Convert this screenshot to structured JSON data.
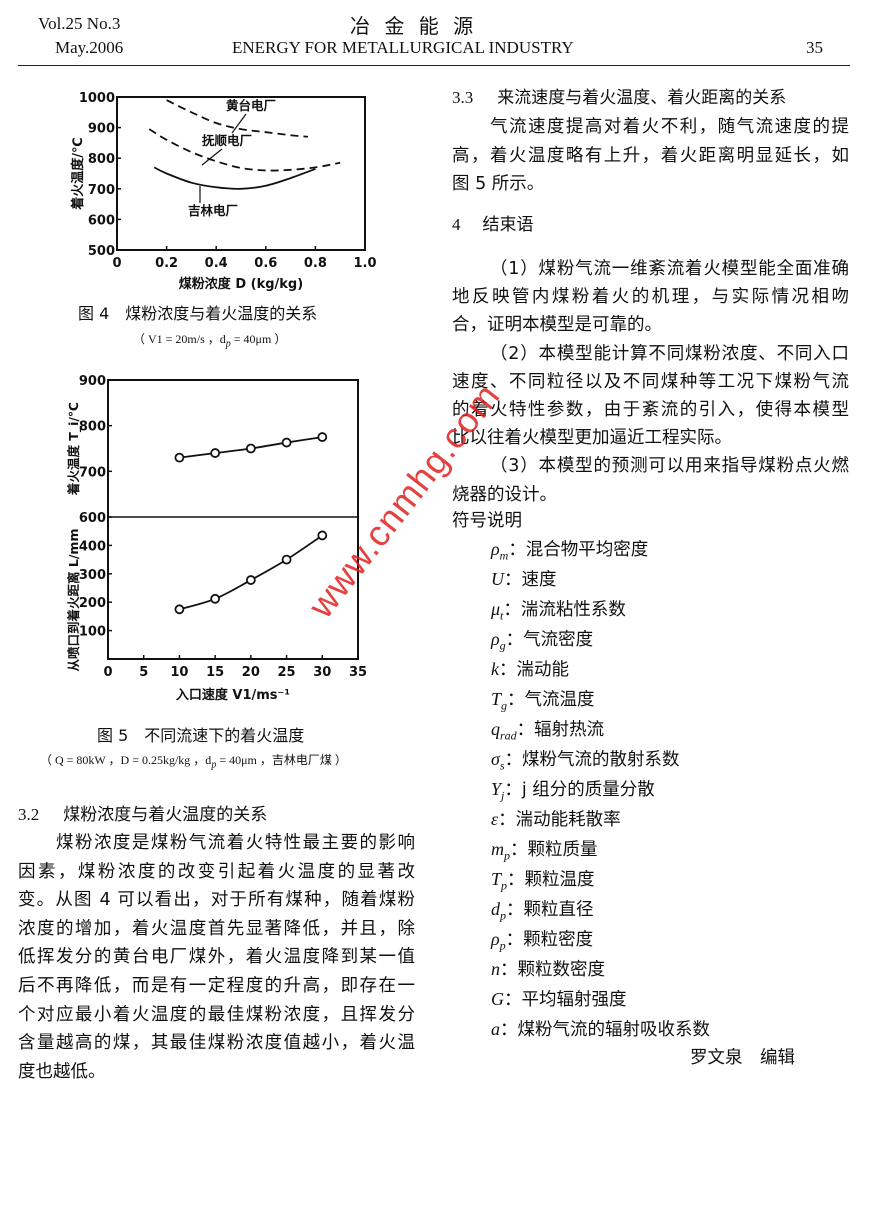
{
  "header": {
    "volume": "Vol.25   No.3",
    "date": "May.2006",
    "journal_cn": "冶 金 能 源",
    "journal_en": "ENERGY FOR METALLURGICAL INDUSTRY",
    "page": "35"
  },
  "fig4": {
    "caption": "图 4　煤粉浓度与着火温度的关系",
    "subcaption": "（ V1 = 20m/s ，d",
    "subcaption_sub": "p",
    "subcaption_end": " = 40μm ）"
  },
  "fig5": {
    "caption": "图 5　不同流速下的着火温度",
    "subcaption": "（ Q = 80kW ，D = 0.25kg/kg ，d",
    "subcaption_sub": "p",
    "subcaption_end": " = 40μm ，吉林电厂煤 ）"
  },
  "chart_data": [
    {
      "type": "line",
      "figure": "图 4",
      "xlabel": "煤粉浓度 D (kg/kg)",
      "ylabel": "着火温度/℃",
      "xlim": [
        0,
        1.0
      ],
      "ylim": [
        500,
        1000
      ],
      "xticks": [
        "0",
        "0.2",
        "0.4",
        "0.6",
        "0.8",
        "1.0"
      ],
      "yticks": [
        "500",
        "600",
        "700",
        "800",
        "900",
        "1000"
      ],
      "grid": false,
      "series": [
        {
          "name": "黄台电厂",
          "style": "dashed",
          "x": [
            0.2,
            0.3,
            0.4,
            0.5,
            0.6,
            0.7,
            0.77
          ],
          "y": [
            990,
            950,
            915,
            895,
            885,
            875,
            870
          ]
        },
        {
          "name": "抚顺电厂",
          "style": "dashed",
          "x": [
            0.13,
            0.2,
            0.3,
            0.4,
            0.5,
            0.6,
            0.7,
            0.8,
            0.9
          ],
          "y": [
            895,
            860,
            820,
            790,
            768,
            760,
            762,
            770,
            785
          ]
        },
        {
          "name": "吉林电厂",
          "style": "solid",
          "x": [
            0.15,
            0.2,
            0.3,
            0.4,
            0.5,
            0.6,
            0.7,
            0.8
          ],
          "y": [
            770,
            750,
            720,
            705,
            700,
            710,
            735,
            765
          ]
        }
      ]
    },
    {
      "type": "line",
      "figure": "图 5 (上)",
      "ylabel": "着火温度 T_i/℃",
      "xlim": [
        0,
        35
      ],
      "ylim": [
        600,
        900
      ],
      "yticks": [
        "600",
        "700",
        "800",
        "900"
      ],
      "grid": false,
      "markers": "open-circle",
      "x": [
        10,
        15,
        20,
        25,
        30
      ],
      "y": [
        730,
        740,
        750,
        763,
        775
      ]
    },
    {
      "type": "line",
      "figure": "图 5 (下)",
      "xlabel": "入口速度 V1/ms⁻¹",
      "ylabel": "从喷口到着火距离 L/mm",
      "xlim": [
        0,
        35
      ],
      "ylim": [
        0,
        500
      ],
      "xticks": [
        "0",
        "5",
        "10",
        "15",
        "20",
        "25",
        "30",
        "35"
      ],
      "yticks": [
        "100",
        "200",
        "300",
        "400"
      ],
      "grid": false,
      "markers": "open-circle",
      "x": [
        10,
        15,
        20,
        25,
        30
      ],
      "y": [
        175,
        212,
        278,
        350,
        435
      ]
    }
  ],
  "left": {
    "heading_num": "3.2",
    "heading": "煤粉浓度与着火温度的关系",
    "lines": [
      "煤粉浓度是煤粉气流着火特性最主要的影响",
      "因素，煤粉浓度的改变引起着火温度的显著改",
      "变。从图 4 可以看出，对于所有煤种，随着煤粉",
      "浓度的增加，着火温度首先显著降低，并且，除",
      "低挥发分的黄台电厂煤外，着火温度降到某一值",
      "后不再降低，而是有一定程度的升高，即存在一",
      "个对应最小着火温度的最佳煤粉浓度，且挥发分",
      "含量越高的煤，其最佳煤粉浓度值越小，着火温",
      "度也越低。"
    ]
  },
  "right": {
    "s33_num": "3.3",
    "s33_heading": "来流速度与着火温度、着火距离的关系",
    "s33_lines": [
      "气流速度提高对着火不利，随气流速度的提",
      "高，着火温度略有上升，着火距离明显延长，如",
      "图 5 所示。"
    ],
    "s4_num": "4",
    "s4_heading": "结束语",
    "s4_lines": [
      "（1）煤粉气流一维紊流着火模型能全面准确",
      "地反映管内煤粉着火的机理，与实际情况相吻",
      "合，证明本模型是可靠的。",
      "（2）本模型能计算不同煤粉浓度、不同入口",
      "速度、不同粒径以及不同煤种等工况下煤粉气流",
      "的着火特性参数，由于紊流的引入，使得本模型",
      "比以往着火模型更加逼近工程实际。",
      "（3）本模型的预测可以用来指导煤粉点火燃",
      "烧器的设计。"
    ],
    "symbols_title": "符号说明",
    "symbols": [
      {
        "sym": "ρ",
        "sub": "m",
        "desc": "：混合物平均密度"
      },
      {
        "sym": "U",
        "sub": "",
        "desc": "：速度"
      },
      {
        "sym": "μ",
        "sub": "t",
        "desc": "：湍流粘性系数"
      },
      {
        "sym": "ρ",
        "sub": "g",
        "desc": "：气流密度"
      },
      {
        "sym": "k",
        "sub": "",
        "desc": "：湍动能"
      },
      {
        "sym": "T",
        "sub": "g",
        "desc": "：气流温度"
      },
      {
        "sym": "q",
        "sub": "rad",
        "desc": "：辐射热流"
      },
      {
        "sym": "σ",
        "sub": "s",
        "desc": "：煤粉气流的散射系数"
      },
      {
        "sym": "Y",
        "sub": "j",
        "desc": "：j 组分的质量分散"
      },
      {
        "sym": "ε",
        "sub": "",
        "desc": "：湍动能耗散率"
      },
      {
        "sym": "m",
        "sub": "p",
        "desc": "：颗粒质量"
      },
      {
        "sym": "T",
        "sub": "p",
        "desc": "：颗粒温度"
      },
      {
        "sym": "d",
        "sub": "p",
        "desc": "：颗粒直径"
      },
      {
        "sym": "ρ",
        "sub": "p",
        "desc": "：颗粒密度"
      },
      {
        "sym": "n",
        "sub": "",
        "desc": "：颗粒数密度"
      },
      {
        "sym": "G",
        "sub": "",
        "desc": "：平均辐射强度"
      },
      {
        "sym": "a",
        "sub": "",
        "desc": "：煤粉气流的辐射吸收系数"
      }
    ],
    "editor": "罗文泉　编辑"
  },
  "watermark": "www.cnmhg.com",
  "colors": {
    "watermark": "#e02020",
    "text": "#111111"
  }
}
